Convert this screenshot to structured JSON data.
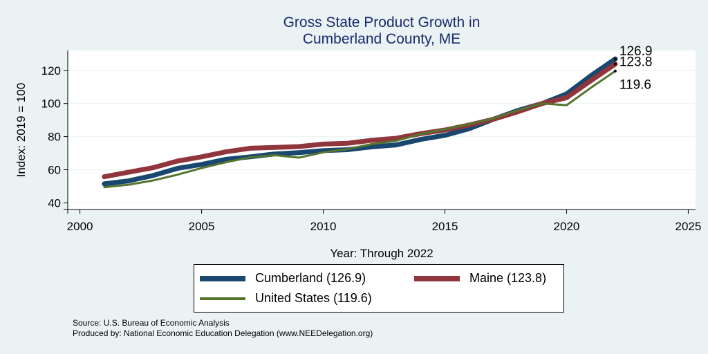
{
  "chart_data": {
    "type": "line",
    "title": [
      "Gross State Product Growth in",
      "Cumberland County, ME"
    ],
    "xlabel": "Year: Through 2022",
    "ylabel": "Index: 2019 = 100",
    "xlim": [
      1999.5,
      2025.3
    ],
    "ylim": [
      36,
      132
    ],
    "x_ticks": [
      2000,
      2005,
      2010,
      2015,
      2020,
      2025
    ],
    "y_ticks": [
      40,
      60,
      80,
      100,
      120
    ],
    "grid": "horizontal",
    "legend_position": "bottom",
    "x": [
      2001,
      2002,
      2003,
      2004,
      2005,
      2006,
      2007,
      2008,
      2009,
      2010,
      2011,
      2012,
      2013,
      2014,
      2015,
      2016,
      2017,
      2018,
      2019,
      2020,
      2021,
      2022
    ],
    "series": [
      {
        "name": "Cumberland  (126.9)",
        "color": "#1a476f",
        "width": 7,
        "values": [
          51.5,
          53.3,
          56.5,
          60.8,
          63.2,
          66.3,
          67.8,
          69.5,
          70.3,
          71.5,
          72.1,
          73.8,
          75.0,
          78.3,
          80.8,
          84.8,
          90.5,
          95.8,
          100.0,
          105.8,
          116.8,
          126.9
        ]
      },
      {
        "name": "Maine (123.8)",
        "color": "#90353b",
        "width": 7,
        "values": [
          55.8,
          58.5,
          61.2,
          65.2,
          67.8,
          70.8,
          73.0,
          73.5,
          74.0,
          75.5,
          76.0,
          77.8,
          79.0,
          81.8,
          84.0,
          87.0,
          90.5,
          95.0,
          100.0,
          103.5,
          113.8,
          123.8
        ]
      },
      {
        "name": "United States (119.6)",
        "color": "#55752f",
        "width": 3,
        "values": [
          49.5,
          51.0,
          53.5,
          57.0,
          61.0,
          64.5,
          67.5,
          68.8,
          67.3,
          70.5,
          72.5,
          75.5,
          77.5,
          81.5,
          84.5,
          87.5,
          91.0,
          96.0,
          100.0,
          99.0,
          109.5,
          119.6
        ]
      }
    ],
    "end_labels": [
      "126.9",
      "123.8",
      "119.6"
    ]
  },
  "footer": {
    "source": "Source: U.S. Bureau of Economic Analysis",
    "produced": "Produced by: National Economic Education Delegation (www.NEEDelegation.org)"
  }
}
